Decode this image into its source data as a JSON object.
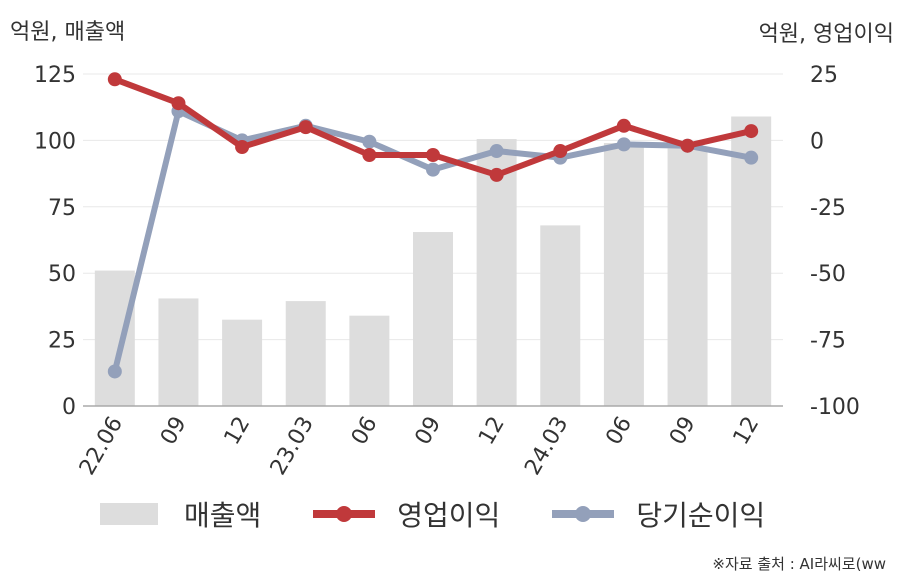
{
  "units": {
    "left": "억원, 매출액",
    "right": "억원, 영업이익"
  },
  "source": "※자료 출처 : AI라씨로(ww",
  "colors": {
    "bar": "#dddddd",
    "operating": "#c0393b",
    "net": "#93a0ba",
    "grid": "#e8e8e8",
    "axis": "#aaaaaa",
    "text": "#333333"
  },
  "chart_data": {
    "type": "bar+line",
    "categories": [
      "22.06",
      "09",
      "12",
      "23.03",
      "06",
      "09",
      "12",
      "24.03",
      "06",
      "09",
      "12"
    ],
    "series": [
      {
        "name": "매출액",
        "type": "bar",
        "axis": "left",
        "values": [
          51,
          40.5,
          32.5,
          39.5,
          34,
          65.5,
          100.5,
          68,
          99,
          97,
          109
        ]
      },
      {
        "name": "영업이익",
        "type": "line",
        "axis": "right",
        "values": [
          23,
          14,
          -2.5,
          5,
          -5.5,
          -5.5,
          -13,
          -4,
          5.5,
          -2,
          3.5
        ]
      },
      {
        "name": "당기순이익",
        "type": "line",
        "axis": "right",
        "values": [
          -87,
          11,
          0,
          5.5,
          -0.5,
          -11,
          -4,
          -6.5,
          -1.5,
          -2,
          -6.5
        ]
      }
    ],
    "y_left": {
      "min": 0,
      "max": 125,
      "ticks": [
        0,
        25,
        50,
        75,
        100,
        125
      ]
    },
    "y_right": {
      "min": -100,
      "max": 25,
      "ticks": [
        -100,
        -75,
        -50,
        -25,
        0,
        25
      ]
    },
    "grid": true,
    "legend": "bottom"
  }
}
